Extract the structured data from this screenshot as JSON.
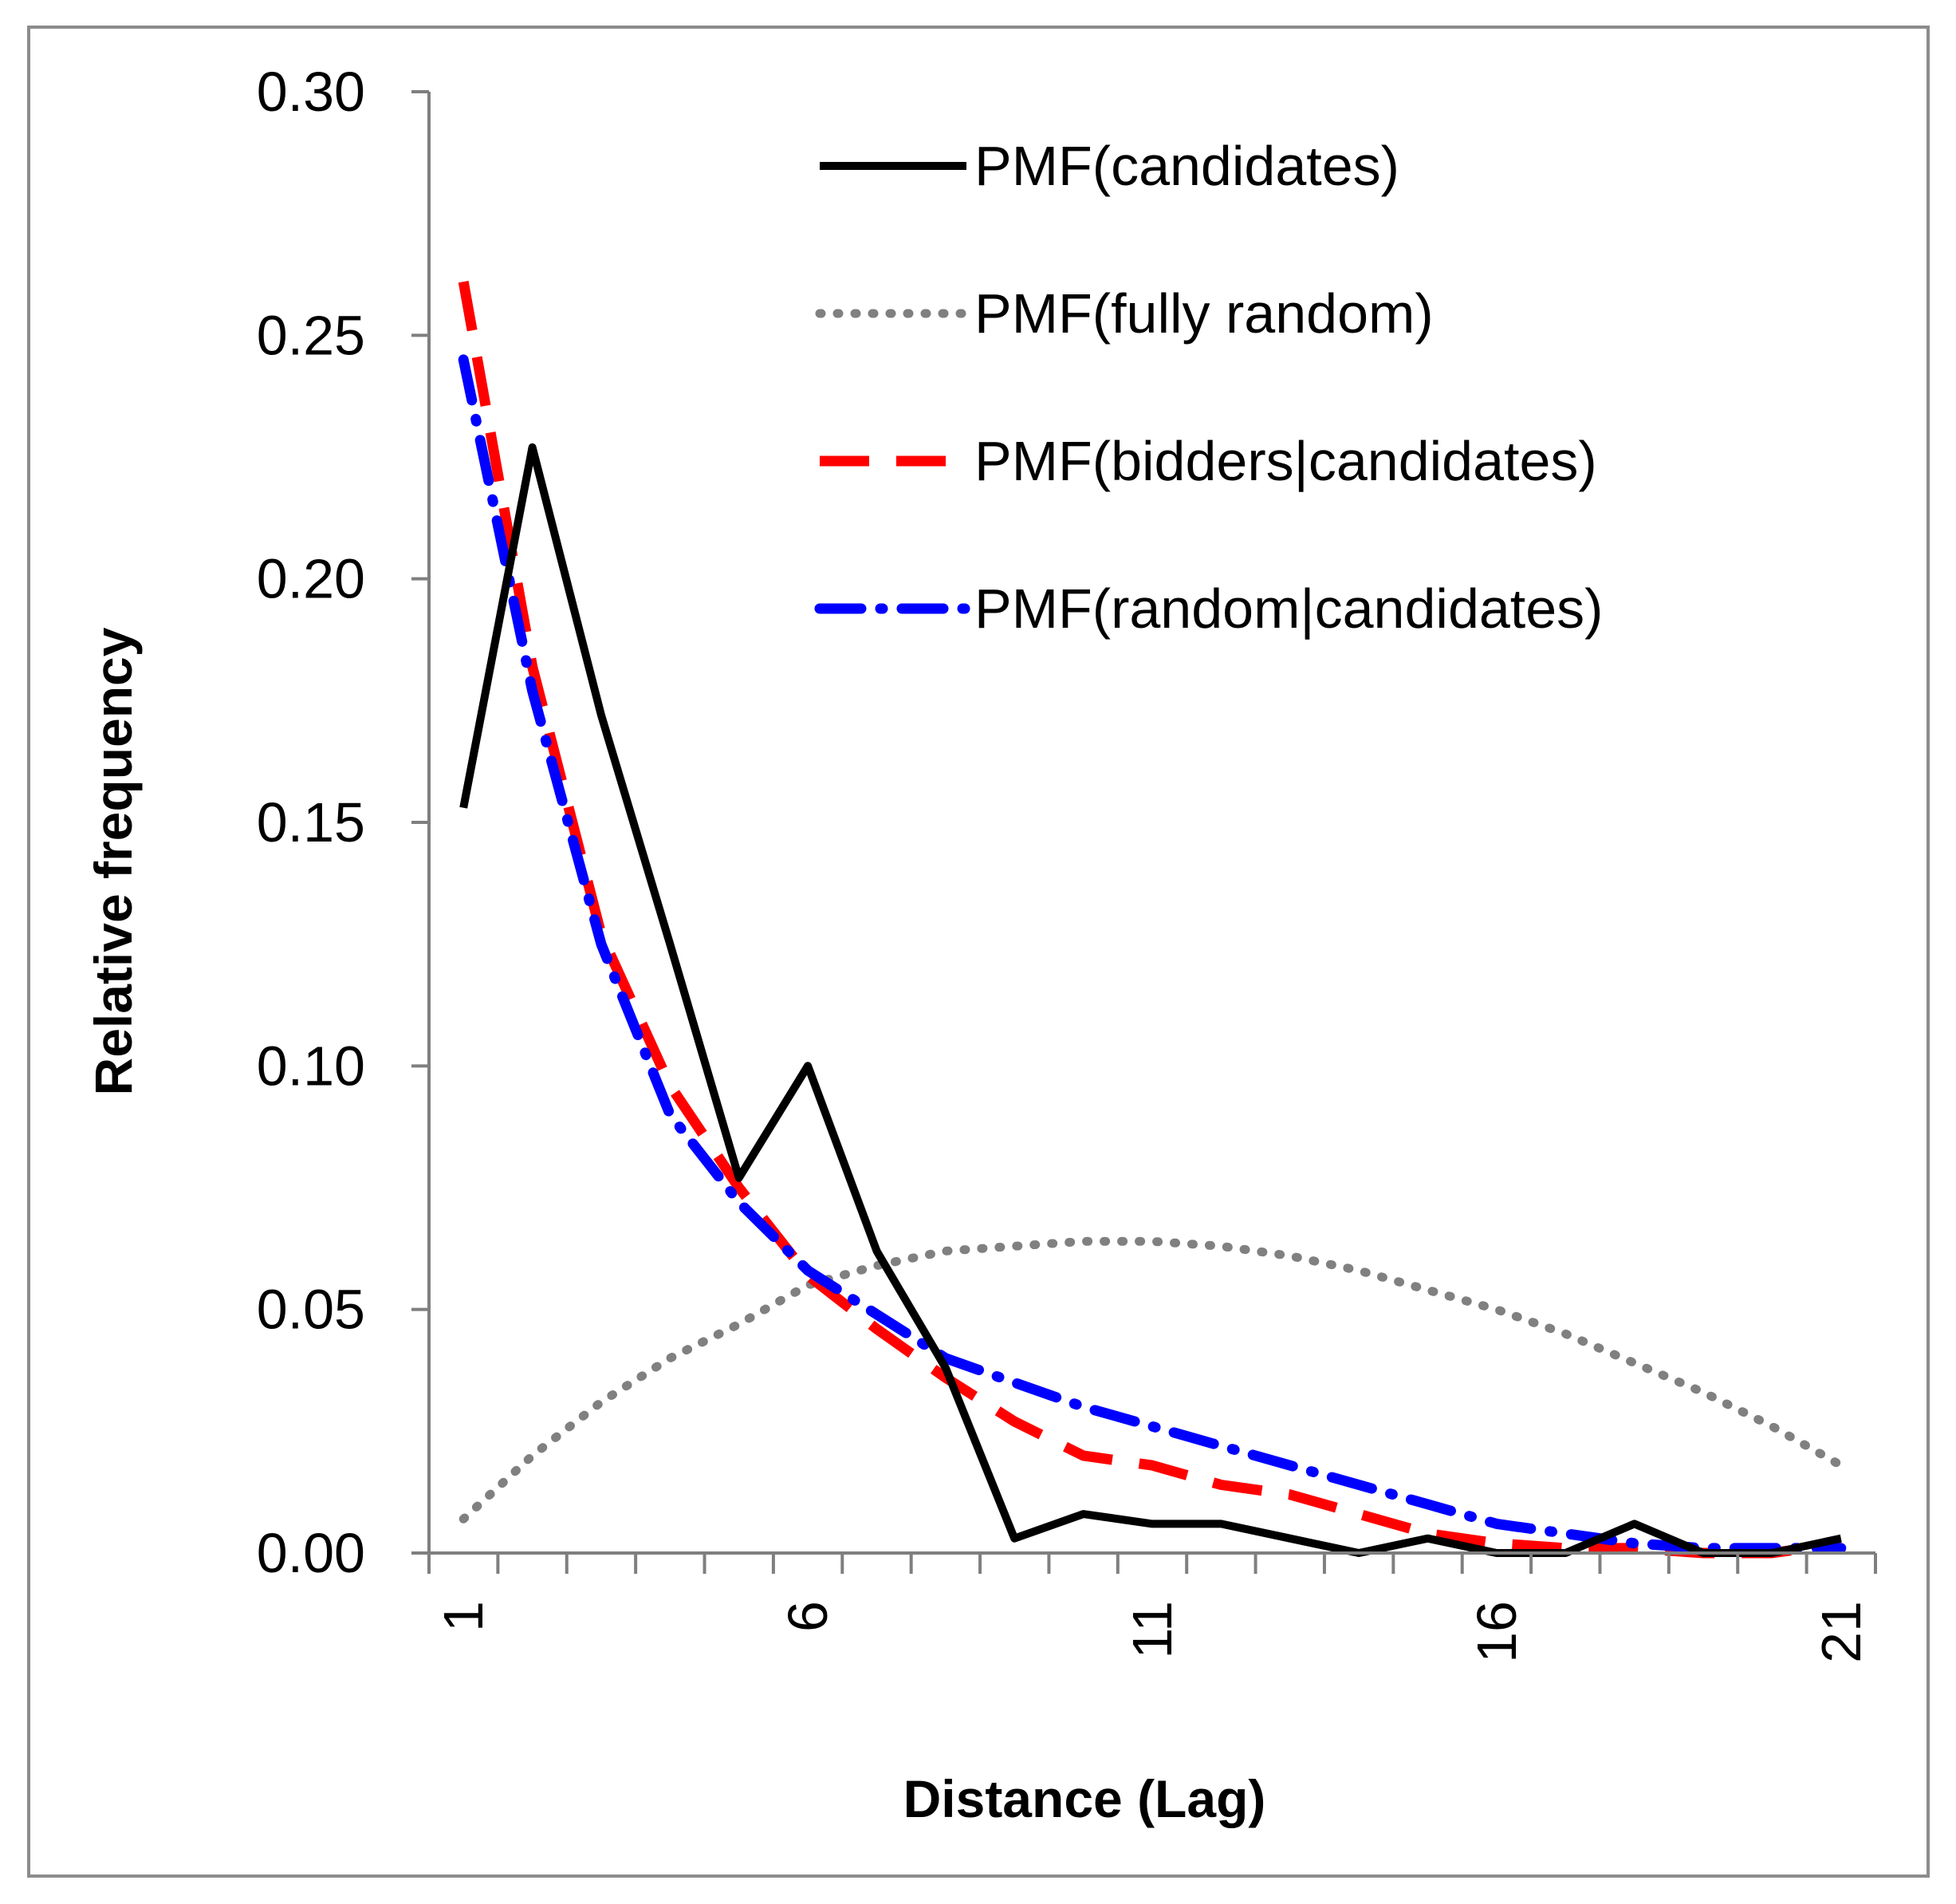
{
  "chart_data": {
    "type": "line",
    "title": "",
    "xlabel": "Distance (Lag)",
    "ylabel": "Relative frequency",
    "xlim": [
      1,
      21
    ],
    "ylim": [
      0,
      0.3
    ],
    "grid": false,
    "legend_position": "top-right",
    "x": [
      1,
      2,
      3,
      4,
      5,
      6,
      7,
      8,
      9,
      10,
      11,
      12,
      13,
      14,
      15,
      16,
      17,
      18,
      19,
      20,
      21
    ],
    "x_tick_labels": [
      "1",
      "6",
      "11",
      "16",
      "21"
    ],
    "x_tick_values": [
      1,
      6,
      11,
      16,
      21
    ],
    "y_tick_labels": [
      "0.00",
      "0.05",
      "0.10",
      "0.15",
      "0.20",
      "0.25",
      "0.30"
    ],
    "y_tick_values": [
      0,
      0.05,
      0.1,
      0.15,
      0.2,
      0.25,
      0.3
    ],
    "series": [
      {
        "name": "PMF(candidates)",
        "color": "#000000",
        "style": "solid",
        "values": [
          0.153,
          0.227,
          0.172,
          0.125,
          0.077,
          0.1,
          0.062,
          0.038,
          0.003,
          0.008,
          0.006,
          0.006,
          0.003,
          0.0,
          0.003,
          0.0,
          0.0,
          0.006,
          0.0,
          0.0,
          0.003
        ]
      },
      {
        "name": "PMF(fully random)",
        "color": "#808080",
        "style": "dotted",
        "values": [
          0.007,
          0.02,
          0.031,
          0.04,
          0.047,
          0.055,
          0.059,
          0.062,
          0.063,
          0.064,
          0.064,
          0.063,
          0.061,
          0.058,
          0.054,
          0.05,
          0.045,
          0.039,
          0.033,
          0.026,
          0.018
        ]
      },
      {
        "name": "PMF(bidders|candidates)",
        "color": "#ff0000",
        "style": "dashed",
        "values": [
          0.261,
          0.182,
          0.127,
          0.096,
          0.075,
          0.057,
          0.046,
          0.036,
          0.027,
          0.02,
          0.018,
          0.014,
          0.012,
          0.008,
          0.004,
          0.002,
          0.001,
          0.001,
          0.0,
          0.0,
          0.002
        ]
      },
      {
        "name": "PMF(random|candidates)",
        "color": "#0000ff",
        "style": "dash-dot",
        "values": [
          0.245,
          0.177,
          0.125,
          0.09,
          0.072,
          0.058,
          0.049,
          0.04,
          0.035,
          0.03,
          0.026,
          0.022,
          0.018,
          0.014,
          0.01,
          0.006,
          0.004,
          0.002,
          0.001,
          0.001,
          0.001
        ]
      }
    ]
  }
}
